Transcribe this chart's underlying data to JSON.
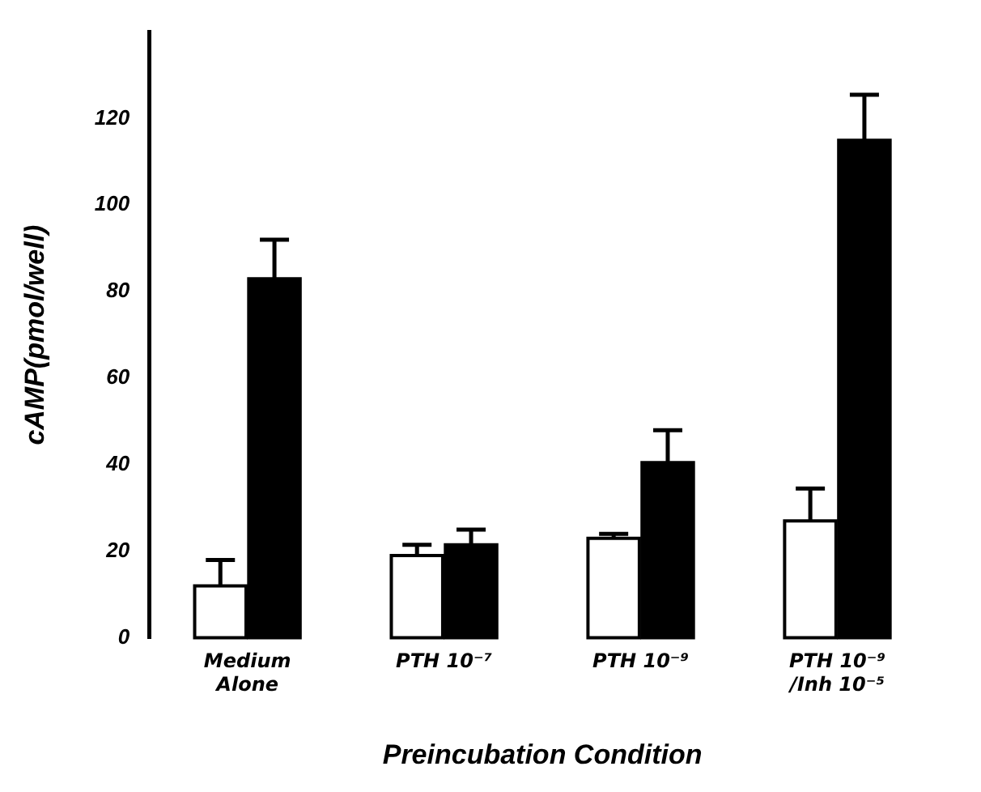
{
  "chart_data": {
    "type": "bar",
    "xlabel": "Preincubation Condition",
    "ylabel": "cAMP(pmol/well)",
    "categories": [
      "Medium\nAlone",
      "PTH 10⁻⁷",
      "PTH 10⁻⁹",
      "PTH 10⁻⁹\n/Inh 10⁻⁵"
    ],
    "series": [
      {
        "color": "#ffffff",
        "values": [
          12,
          19,
          23,
          27
        ],
        "errors": [
          [
            12,
            18
          ],
          [
            19,
            21.5
          ],
          [
            23,
            24
          ],
          [
            27,
            34.5
          ]
        ]
      },
      {
        "color": "#000000",
        "values": [
          83,
          21.5,
          40.5,
          115
        ],
        "errors": [
          [
            83,
            92
          ],
          [
            21.5,
            25
          ],
          [
            40.5,
            48
          ],
          [
            115,
            125.5
          ]
        ]
      }
    ],
    "ylim": [
      0,
      140
    ],
    "yticks": [
      0,
      20,
      40,
      60,
      80,
      100,
      120
    ],
    "grid": false,
    "legend": false
  }
}
